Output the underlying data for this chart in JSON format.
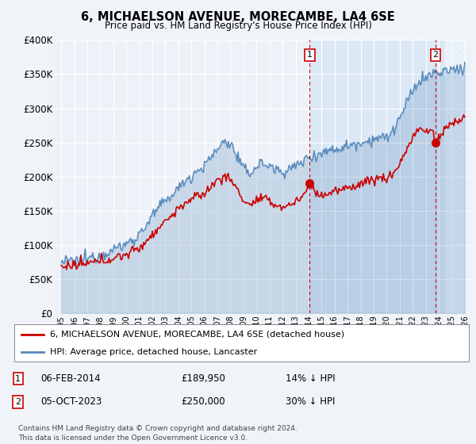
{
  "title": "6, MICHAELSON AVENUE, MORECAMBE, LA4 6SE",
  "subtitle": "Price paid vs. HM Land Registry's House Price Index (HPI)",
  "ylim": [
    0,
    400000
  ],
  "yticks": [
    0,
    50000,
    100000,
    150000,
    200000,
    250000,
    300000,
    350000,
    400000
  ],
  "ytick_labels": [
    "£0",
    "£50K",
    "£100K",
    "£150K",
    "£200K",
    "£250K",
    "£300K",
    "£350K",
    "£400K"
  ],
  "xlim_start": 1994.5,
  "xlim_end": 2026.5,
  "xticks": [
    1995,
    1996,
    1997,
    1998,
    1999,
    2000,
    2001,
    2002,
    2003,
    2004,
    2005,
    2006,
    2007,
    2008,
    2009,
    2010,
    2011,
    2012,
    2013,
    2014,
    2015,
    2016,
    2017,
    2018,
    2019,
    2020,
    2021,
    2022,
    2023,
    2024,
    2025,
    2026
  ],
  "bg_color": "#f0f4f8",
  "plot_bg_color": "#eef2f8",
  "highlight_color": "#dce8f5",
  "grid_color": "#ffffff",
  "red_line_color": "#cc0000",
  "blue_line_color": "#5588bb",
  "marker1_x": 2014.08,
  "marker1_y": 189950,
  "marker2_x": 2023.75,
  "marker2_y": 250000,
  "hatch_start": 2024.5,
  "highlight_start": 2014.08,
  "legend_line1": "6, MICHAELSON AVENUE, MORECAMBE, LA4 6SE (detached house)",
  "legend_line2": "HPI: Average price, detached house, Lancaster",
  "marker1_date": "06-FEB-2014",
  "marker1_price": "£189,950",
  "marker1_hpi": "14% ↓ HPI",
  "marker2_date": "05-OCT-2023",
  "marker2_price": "£250,000",
  "marker2_hpi": "30% ↓ HPI",
  "footer1": "Contains HM Land Registry data © Crown copyright and database right 2024.",
  "footer2": "This data is licensed under the Open Government Licence v3.0."
}
